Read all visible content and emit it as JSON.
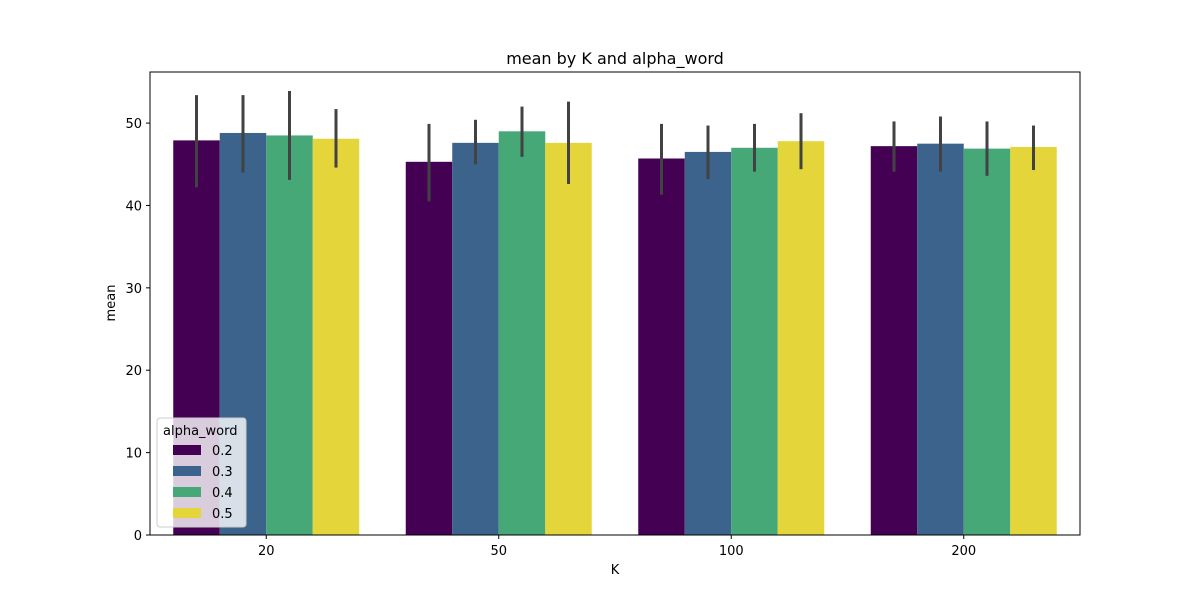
{
  "chart_data": {
    "type": "bar",
    "title": "mean by K and alpha_word",
    "xlabel": "K",
    "ylabel": "mean",
    "categories": [
      "20",
      "50",
      "100",
      "200"
    ],
    "ylim": [
      0,
      56.2
    ],
    "yticks": [
      "0",
      "10",
      "20",
      "30",
      "40",
      "50"
    ],
    "legend": {
      "title": "alpha_word",
      "placement": "lower-left"
    },
    "series": [
      {
        "name": "0.2",
        "color": "#440154",
        "values": [
          47.9,
          45.3,
          45.7,
          47.2
        ],
        "err_low": [
          42.2,
          40.5,
          41.3,
          44.1
        ],
        "err_high": [
          53.4,
          49.9,
          49.9,
          50.2
        ]
      },
      {
        "name": "0.3",
        "color": "#3b638b",
        "values": [
          48.8,
          47.6,
          46.5,
          47.5
        ],
        "err_low": [
          44.0,
          45.0,
          43.2,
          44.1
        ],
        "err_high": [
          53.4,
          50.4,
          49.7,
          50.8
        ]
      },
      {
        "name": "0.4",
        "color": "#45a876",
        "values": [
          48.5,
          49.0,
          47.0,
          46.9
        ],
        "err_low": [
          43.1,
          45.9,
          44.1,
          43.6
        ],
        "err_high": [
          53.9,
          52.0,
          49.9,
          50.2
        ]
      },
      {
        "name": "0.5",
        "color": "#e3d53a",
        "values": [
          48.1,
          47.6,
          47.8,
          47.1
        ],
        "err_low": [
          44.6,
          42.6,
          44.4,
          44.3
        ],
        "err_high": [
          51.7,
          52.6,
          51.2,
          49.7
        ]
      }
    ]
  }
}
